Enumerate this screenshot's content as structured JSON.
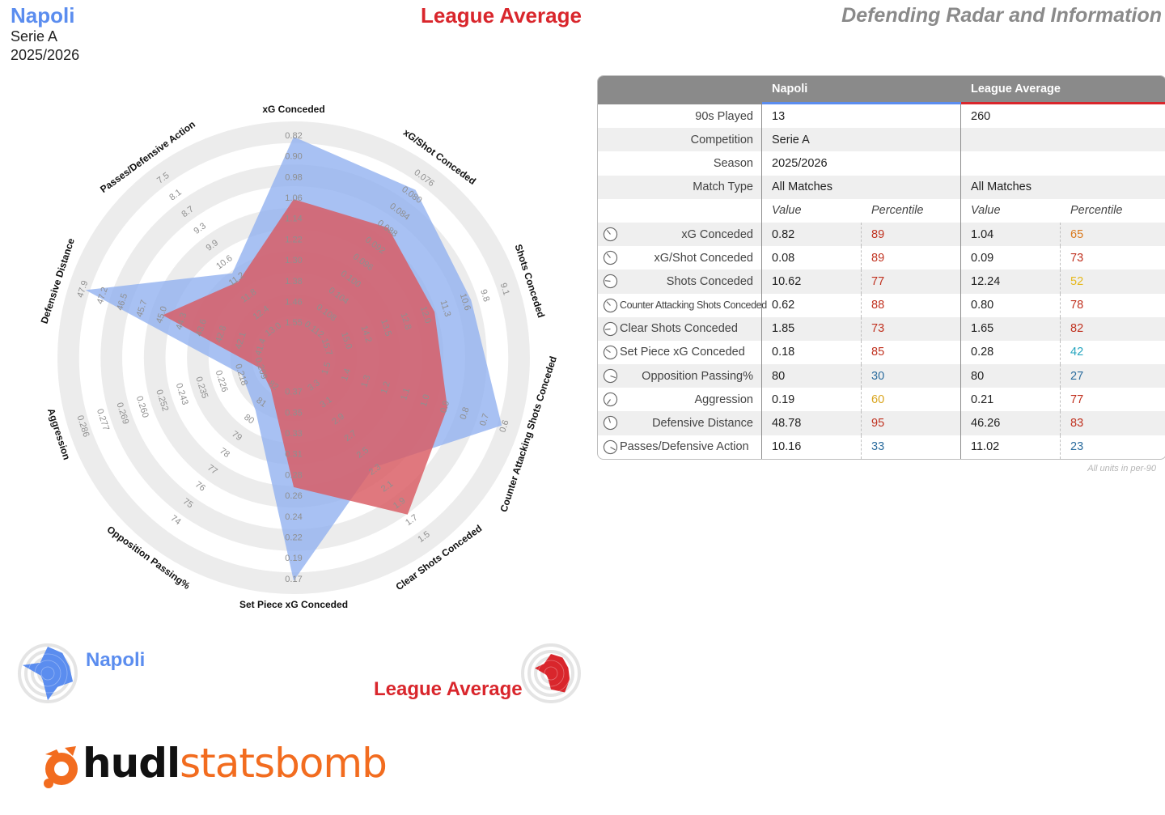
{
  "header": {
    "team": "Napoli",
    "competition": "Serie A",
    "season": "2025/2026",
    "comparison": "League Average",
    "report_title": "Defending Radar and Information"
  },
  "colors": {
    "team": "#5b8def",
    "team_fill": "#8fb0f0",
    "average": "#d9262c",
    "average_fill": "#d95a62",
    "rings": "#ececec",
    "percentile_red": "#c0311f",
    "percentile_orange": "#d9781c",
    "percentile_yellow": "#e6b81c",
    "percentile_blue": "#2b6c9e",
    "percentile_teal": "#26a5bf"
  },
  "chart_data": {
    "type": "radar",
    "title": "Defending Radar",
    "series": [
      {
        "name": "Napoli",
        "values_fraction": [
          0.965,
          0.9,
          0.8,
          0.955,
          0.555,
          0.975,
          0.215,
          0.165,
          0.955,
          0.405
        ]
      },
      {
        "name": "League Average",
        "values_fraction": [
          0.665,
          0.675,
          0.615,
          0.68,
          0.835,
          0.525,
          0.09,
          0.07,
          0.565,
          0.355
        ]
      }
    ],
    "axes": [
      {
        "label": "xG Conceded",
        "ticks": [
          "1.55",
          "1.46",
          "1.38",
          "1.30",
          "1.22",
          "1.14",
          "1.06",
          "0.98",
          "0.90",
          "0.82"
        ]
      },
      {
        "label": "xG/Shot Conceded",
        "ticks": [
          "0.112",
          "0.108",
          "0.104",
          "0.100",
          "0.096",
          "0.092",
          "0.088",
          "0.084",
          "0.080",
          "0.076"
        ]
      },
      {
        "label": "Shots Conceded",
        "ticks": [
          "15.7",
          "15.0",
          "14.2",
          "13.5",
          "12.8",
          "12.0",
          "11.3",
          "10.6",
          "9.8",
          "9.1"
        ]
      },
      {
        "label": "Counter Attacking Shots Conceded",
        "ticks": [
          "1.5",
          "1.4",
          "1.3",
          "1.2",
          "1.1",
          "1.0",
          "0.9",
          "0.8",
          "0.7",
          "0.6"
        ]
      },
      {
        "label": "Clear Shots Conceded",
        "ticks": [
          "3.3",
          "3.1",
          "2.9",
          "2.7",
          "2.5",
          "2.3",
          "2.1",
          "1.9",
          "1.7",
          "1.5"
        ]
      },
      {
        "label": "Set Piece xG Conceded",
        "ticks": [
          "0.37",
          "0.35",
          "0.33",
          "0.31",
          "0.28",
          "0.26",
          "0.24",
          "0.22",
          "0.19",
          "0.17"
        ]
      },
      {
        "label": "Opposition Passing%",
        "ticks": [
          "82",
          "81",
          "80",
          "79",
          "78",
          "77",
          "76",
          "75",
          "74"
        ]
      },
      {
        "label": "Aggression",
        "ticks": [
          "0.209",
          "0.218",
          "0.226",
          "0.235",
          "0.243",
          "0.252",
          "0.260",
          "0.269",
          "0.277",
          "0.286"
        ]
      },
      {
        "label": "Defensive Distance",
        "ticks": [
          "41.4",
          "42.1",
          "42.8",
          "43.6",
          "44.3",
          "45.0",
          "45.7",
          "46.5",
          "47.2",
          "47.9"
        ]
      },
      {
        "label": "Passes/Defensive Action",
        "ticks": [
          "13.0",
          "12.4",
          "11.8",
          "11.2",
          "10.6",
          "9.9",
          "9.3",
          "8.7",
          "8.1",
          "7.5"
        ]
      }
    ]
  },
  "legend": {
    "team_label": "Napoli",
    "average_label": "League Average"
  },
  "logo": {
    "part1": "hudl",
    "part2": "statsbomb",
    "icon": "statsbomb-bomb-icon"
  },
  "table": {
    "header": {
      "team": "Napoli",
      "average": "League Average"
    },
    "info_rows": [
      {
        "label": "90s Played",
        "team": "13",
        "average": "260"
      },
      {
        "label": "Competition",
        "team": "Serie A",
        "average": ""
      },
      {
        "label": "Season",
        "team": "2025/2026",
        "average": ""
      },
      {
        "label": "Match Type",
        "team": "All Matches",
        "average": "All Matches"
      }
    ],
    "subheaders": {
      "value": "Value",
      "percentile": "Percentile"
    },
    "metric_rows": [
      {
        "label": "xG Conceded",
        "team_value": "0.82",
        "team_pct": "89",
        "team_pct_color": "#c0311f",
        "avg_value": "1.04",
        "avg_pct": "65",
        "avg_pct_color": "#d9781c",
        "icon_pct": 0.89
      },
      {
        "label": "xG/Shot Conceded",
        "team_value": "0.08",
        "team_pct": "89",
        "team_pct_color": "#c0311f",
        "avg_value": "0.09",
        "avg_pct": "73",
        "avg_pct_color": "#c0311f",
        "icon_pct": 0.89
      },
      {
        "label": "Shots Conceded",
        "team_value": "10.62",
        "team_pct": "77",
        "team_pct_color": "#c0311f",
        "avg_value": "12.24",
        "avg_pct": "52",
        "avg_pct_color": "#e6b81c",
        "icon_pct": 0.77
      },
      {
        "label": "Counter Attacking Shots Conceded",
        "team_value": "0.62",
        "team_pct": "88",
        "team_pct_color": "#c0311f",
        "avg_value": "0.80",
        "avg_pct": "78",
        "avg_pct_color": "#c0311f",
        "icon_pct": 0.88
      },
      {
        "label": "Clear Shots Conceded",
        "team_value": "1.85",
        "team_pct": "73",
        "team_pct_color": "#c0311f",
        "avg_value": "1.65",
        "avg_pct": "82",
        "avg_pct_color": "#c0311f",
        "icon_pct": 0.73
      },
      {
        "label": "Set Piece xG Conceded",
        "team_value": "0.18",
        "team_pct": "85",
        "team_pct_color": "#c0311f",
        "avg_value": "0.28",
        "avg_pct": "42",
        "avg_pct_color": "#26a5bf",
        "icon_pct": 0.85
      },
      {
        "label": "Opposition Passing%",
        "team_value": "80",
        "team_pct": "30",
        "team_pct_color": "#2b6c9e",
        "avg_value": "80",
        "avg_pct": "27",
        "avg_pct_color": "#2b6c9e",
        "icon_pct": 0.3
      },
      {
        "label": "Aggression",
        "team_value": "0.19",
        "team_pct": "60",
        "team_pct_color": "#d9a41c",
        "avg_value": "0.21",
        "avg_pct": "77",
        "avg_pct_color": "#c0311f",
        "icon_pct": 0.6
      },
      {
        "label": "Defensive Distance",
        "team_value": "48.78",
        "team_pct": "95",
        "team_pct_color": "#c0311f",
        "avg_value": "46.26",
        "avg_pct": "83",
        "avg_pct_color": "#c0311f",
        "icon_pct": 0.95
      },
      {
        "label": "Passes/Defensive Action",
        "team_value": "10.16",
        "team_pct": "33",
        "team_pct_color": "#2b6c9e",
        "avg_value": "11.02",
        "avg_pct": "23",
        "avg_pct_color": "#2b6c9e",
        "icon_pct": 0.33
      }
    ],
    "units_note": "All units in per-90"
  }
}
